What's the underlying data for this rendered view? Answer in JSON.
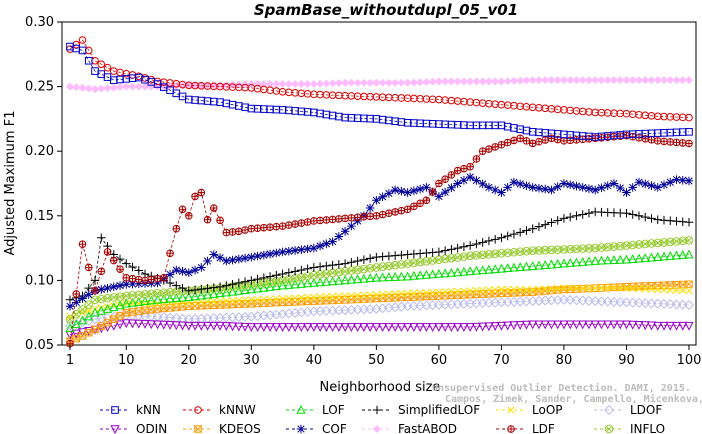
{
  "chart_data": {
    "type": "line",
    "title": "SpamBase_withoutdupl_05_v01",
    "xlabel": "Neighborhood size",
    "ylabel": "Adjusted Maximum F1",
    "xlim": [
      1,
      100
    ],
    "ylim": [
      0.05,
      0.3
    ],
    "xticks": [
      1,
      10,
      20,
      30,
      40,
      50,
      60,
      70,
      80,
      90,
      100
    ],
    "yticks": [
      0.05,
      0.1,
      0.15,
      0.2,
      0.25,
      0.3
    ],
    "ytick_labels": [
      "0.05",
      "0.10",
      "0.15",
      "0.20",
      "0.25",
      "0.30"
    ],
    "grid": false,
    "legend_position": "bottom",
    "watermark": {
      "line1": "Unsupervised Outlier Detection. DAMI, 2015.",
      "line2": "Campos, Zimek, Sander, Campello, Micenkova, Schubert, Assent, Houle"
    },
    "series": [
      {
        "name": "kNN",
        "color": "#0000cc",
        "marker": "square",
        "points": [
          [
            1,
            0.281
          ],
          [
            3,
            0.278
          ],
          [
            5,
            0.262
          ],
          [
            8,
            0.255
          ],
          [
            12,
            0.257
          ],
          [
            15,
            0.252
          ],
          [
            20,
            0.24
          ],
          [
            25,
            0.238
          ],
          [
            30,
            0.233
          ],
          [
            35,
            0.232
          ],
          [
            40,
            0.23
          ],
          [
            45,
            0.226
          ],
          [
            50,
            0.225
          ],
          [
            55,
            0.222
          ],
          [
            60,
            0.221
          ],
          [
            65,
            0.22
          ],
          [
            70,
            0.22
          ],
          [
            75,
            0.215
          ],
          [
            80,
            0.213
          ],
          [
            85,
            0.211
          ],
          [
            90,
            0.213
          ],
          [
            95,
            0.214
          ],
          [
            100,
            0.215
          ]
        ]
      },
      {
        "name": "kNNW",
        "color": "#dd0000",
        "marker": "circle",
        "points": [
          [
            1,
            0.279
          ],
          [
            3,
            0.286
          ],
          [
            5,
            0.27
          ],
          [
            8,
            0.262
          ],
          [
            12,
            0.258
          ],
          [
            15,
            0.254
          ],
          [
            20,
            0.251
          ],
          [
            25,
            0.25
          ],
          [
            30,
            0.249
          ],
          [
            35,
            0.246
          ],
          [
            40,
            0.244
          ],
          [
            45,
            0.243
          ],
          [
            50,
            0.242
          ],
          [
            55,
            0.241
          ],
          [
            60,
            0.24
          ],
          [
            65,
            0.238
          ],
          [
            70,
            0.236
          ],
          [
            75,
            0.234
          ],
          [
            80,
            0.232
          ],
          [
            85,
            0.23
          ],
          [
            90,
            0.229
          ],
          [
            95,
            0.227
          ],
          [
            100,
            0.226
          ]
        ]
      },
      {
        "name": "LOF",
        "color": "#00dd00",
        "marker": "triangle-up",
        "points": [
          [
            1,
            0.063
          ],
          [
            5,
            0.075
          ],
          [
            10,
            0.082
          ],
          [
            15,
            0.085
          ],
          [
            20,
            0.087
          ],
          [
            25,
            0.09
          ],
          [
            30,
            0.093
          ],
          [
            35,
            0.096
          ],
          [
            40,
            0.098
          ],
          [
            45,
            0.1
          ],
          [
            50,
            0.102
          ],
          [
            55,
            0.103
          ],
          [
            60,
            0.105
          ],
          [
            65,
            0.107
          ],
          [
            70,
            0.109
          ],
          [
            75,
            0.111
          ],
          [
            80,
            0.113
          ],
          [
            85,
            0.115
          ],
          [
            90,
            0.116
          ],
          [
            95,
            0.118
          ],
          [
            100,
            0.12
          ]
        ]
      },
      {
        "name": "SimplifiedLOF",
        "color": "#000000",
        "marker": "plus",
        "points": [
          [
            1,
            0.085
          ],
          [
            3,
            0.088
          ],
          [
            5,
            0.1
          ],
          [
            6,
            0.133
          ],
          [
            8,
            0.12
          ],
          [
            10,
            0.113
          ],
          [
            13,
            0.105
          ],
          [
            16,
            0.1
          ],
          [
            20,
            0.092
          ],
          [
            25,
            0.095
          ],
          [
            30,
            0.1
          ],
          [
            35,
            0.105
          ],
          [
            40,
            0.11
          ],
          [
            45,
            0.113
          ],
          [
            50,
            0.118
          ],
          [
            55,
            0.12
          ],
          [
            60,
            0.122
          ],
          [
            65,
            0.127
          ],
          [
            70,
            0.133
          ],
          [
            75,
            0.14
          ],
          [
            80,
            0.148
          ],
          [
            85,
            0.153
          ],
          [
            90,
            0.152
          ],
          [
            95,
            0.147
          ],
          [
            100,
            0.145
          ]
        ]
      },
      {
        "name": "LoOP",
        "color": "#ffdd00",
        "marker": "x",
        "points": [
          [
            1,
            0.072
          ],
          [
            5,
            0.078
          ],
          [
            10,
            0.082
          ],
          [
            15,
            0.082
          ],
          [
            20,
            0.083
          ],
          [
            25,
            0.084
          ],
          [
            30,
            0.085
          ],
          [
            35,
            0.086
          ],
          [
            40,
            0.087
          ],
          [
            45,
            0.088
          ],
          [
            50,
            0.089
          ],
          [
            55,
            0.09
          ],
          [
            60,
            0.091
          ],
          [
            65,
            0.092
          ],
          [
            70,
            0.093
          ],
          [
            75,
            0.093
          ],
          [
            80,
            0.094
          ],
          [
            85,
            0.094
          ],
          [
            90,
            0.094
          ],
          [
            95,
            0.093
          ],
          [
            100,
            0.092
          ]
        ]
      },
      {
        "name": "LDOF",
        "color": "#bbbbee",
        "marker": "diamond",
        "points": [
          [
            1,
            0.065
          ],
          [
            5,
            0.07
          ],
          [
            10,
            0.073
          ],
          [
            15,
            0.072
          ],
          [
            20,
            0.07
          ],
          [
            25,
            0.071
          ],
          [
            30,
            0.072
          ],
          [
            35,
            0.074
          ],
          [
            40,
            0.076
          ],
          [
            45,
            0.077
          ],
          [
            50,
            0.078
          ],
          [
            55,
            0.08
          ],
          [
            60,
            0.081
          ],
          [
            65,
            0.082
          ],
          [
            70,
            0.083
          ],
          [
            75,
            0.084
          ],
          [
            80,
            0.085
          ],
          [
            85,
            0.084
          ],
          [
            90,
            0.083
          ],
          [
            95,
            0.082
          ],
          [
            100,
            0.081
          ]
        ]
      },
      {
        "name": "ODIN",
        "color": "#9900cc",
        "marker": "triangle-down",
        "points": [
          [
            1,
            0.058
          ],
          [
            5,
            0.062
          ],
          [
            10,
            0.067
          ],
          [
            15,
            0.066
          ],
          [
            20,
            0.065
          ],
          [
            25,
            0.065
          ],
          [
            30,
            0.064
          ],
          [
            35,
            0.064
          ],
          [
            40,
            0.064
          ],
          [
            45,
            0.064
          ],
          [
            50,
            0.064
          ],
          [
            55,
            0.064
          ],
          [
            60,
            0.064
          ],
          [
            65,
            0.064
          ],
          [
            70,
            0.065
          ],
          [
            75,
            0.066
          ],
          [
            80,
            0.066
          ],
          [
            85,
            0.066
          ],
          [
            90,
            0.066
          ],
          [
            95,
            0.065
          ],
          [
            100,
            0.065
          ]
        ]
      },
      {
        "name": "KDEOS",
        "color": "#ff9900",
        "marker": "square-x",
        "points": [
          [
            1,
            0.053
          ],
          [
            3,
            0.057
          ],
          [
            5,
            0.062
          ],
          [
            8,
            0.07
          ],
          [
            10,
            0.075
          ],
          [
            15,
            0.078
          ],
          [
            20,
            0.08
          ],
          [
            25,
            0.081
          ],
          [
            30,
            0.082
          ],
          [
            35,
            0.083
          ],
          [
            40,
            0.084
          ],
          [
            45,
            0.085
          ],
          [
            50,
            0.086
          ],
          [
            55,
            0.087
          ],
          [
            60,
            0.088
          ],
          [
            65,
            0.089
          ],
          [
            70,
            0.09
          ],
          [
            75,
            0.091
          ],
          [
            80,
            0.093
          ],
          [
            85,
            0.094
          ],
          [
            90,
            0.095
          ],
          [
            95,
            0.096
          ],
          [
            100,
            0.097
          ]
        ]
      },
      {
        "name": "COF",
        "color": "#000099",
        "marker": "star",
        "points": [
          [
            1,
            0.08
          ],
          [
            5,
            0.092
          ],
          [
            10,
            0.097
          ],
          [
            15,
            0.098
          ],
          [
            18,
            0.108
          ],
          [
            20,
            0.106
          ],
          [
            22,
            0.11
          ],
          [
            24,
            0.12
          ],
          [
            26,
            0.115
          ],
          [
            30,
            0.118
          ],
          [
            35,
            0.122
          ],
          [
            40,
            0.125
          ],
          [
            43,
            0.13
          ],
          [
            45,
            0.138
          ],
          [
            48,
            0.15
          ],
          [
            50,
            0.162
          ],
          [
            53,
            0.17
          ],
          [
            55,
            0.168
          ],
          [
            58,
            0.172
          ],
          [
            60,
            0.165
          ],
          [
            63,
            0.175
          ],
          [
            65,
            0.18
          ],
          [
            68,
            0.172
          ],
          [
            70,
            0.168
          ],
          [
            72,
            0.176
          ],
          [
            75,
            0.172
          ],
          [
            78,
            0.17
          ],
          [
            80,
            0.175
          ],
          [
            83,
            0.172
          ],
          [
            85,
            0.17
          ],
          [
            88,
            0.175
          ],
          [
            90,
            0.168
          ],
          [
            92,
            0.176
          ],
          [
            95,
            0.172
          ],
          [
            98,
            0.178
          ],
          [
            100,
            0.177
          ]
        ]
      },
      {
        "name": "FastABOD",
        "color": "#ffbbff",
        "marker": "diamond-filled",
        "points": [
          [
            1,
            0.25
          ],
          [
            5,
            0.248
          ],
          [
            10,
            0.25
          ],
          [
            15,
            0.25
          ],
          [
            20,
            0.251
          ],
          [
            25,
            0.251
          ],
          [
            30,
            0.252
          ],
          [
            35,
            0.252
          ],
          [
            40,
            0.252
          ],
          [
            45,
            0.253
          ],
          [
            50,
            0.253
          ],
          [
            55,
            0.253
          ],
          [
            60,
            0.254
          ],
          [
            65,
            0.254
          ],
          [
            70,
            0.254
          ],
          [
            75,
            0.255
          ],
          [
            80,
            0.255
          ],
          [
            85,
            0.255
          ],
          [
            90,
            0.255
          ],
          [
            95,
            0.255
          ],
          [
            100,
            0.255
          ]
        ]
      },
      {
        "name": "LDF",
        "color": "#aa0000",
        "marker": "circle-plus",
        "points": [
          [
            1,
            0.051
          ],
          [
            3,
            0.128
          ],
          [
            5,
            0.092
          ],
          [
            7,
            0.122
          ],
          [
            10,
            0.102
          ],
          [
            13,
            0.1
          ],
          [
            16,
            0.102
          ],
          [
            18,
            0.14
          ],
          [
            19,
            0.155
          ],
          [
            20,
            0.15
          ],
          [
            21,
            0.165
          ],
          [
            22,
            0.168
          ],
          [
            23,
            0.147
          ],
          [
            24,
            0.156
          ],
          [
            26,
            0.137
          ],
          [
            28,
            0.138
          ],
          [
            30,
            0.14
          ],
          [
            35,
            0.142
          ],
          [
            40,
            0.146
          ],
          [
            45,
            0.148
          ],
          [
            50,
            0.15
          ],
          [
            55,
            0.155
          ],
          [
            58,
            0.162
          ],
          [
            60,
            0.175
          ],
          [
            63,
            0.185
          ],
          [
            65,
            0.188
          ],
          [
            67,
            0.2
          ],
          [
            70,
            0.205
          ],
          [
            73,
            0.21
          ],
          [
            75,
            0.206
          ],
          [
            78,
            0.21
          ],
          [
            80,
            0.208
          ],
          [
            85,
            0.21
          ],
          [
            90,
            0.212
          ],
          [
            95,
            0.208
          ],
          [
            100,
            0.206
          ]
        ]
      },
      {
        "name": "INFLO",
        "color": "#99cc33",
        "marker": "circle-x",
        "points": [
          [
            1,
            0.07
          ],
          [
            5,
            0.085
          ],
          [
            10,
            0.088
          ],
          [
            15,
            0.09
          ],
          [
            20,
            0.092
          ],
          [
            25,
            0.094
          ],
          [
            30,
            0.097
          ],
          [
            35,
            0.1
          ],
          [
            40,
            0.104
          ],
          [
            45,
            0.107
          ],
          [
            50,
            0.11
          ],
          [
            55,
            0.113
          ],
          [
            60,
            0.116
          ],
          [
            65,
            0.119
          ],
          [
            70,
            0.121
          ],
          [
            75,
            0.123
          ],
          [
            80,
            0.124
          ],
          [
            85,
            0.125
          ],
          [
            90,
            0.127
          ],
          [
            95,
            0.129
          ],
          [
            100,
            0.131
          ]
        ]
      }
    ]
  }
}
